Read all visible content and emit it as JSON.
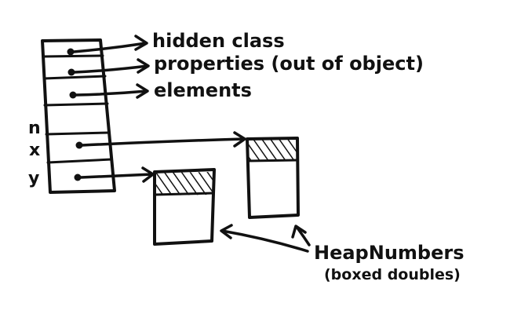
{
  "labels": {
    "hidden_class": "hidden class",
    "properties": "properties (out of object)",
    "elements": "elements",
    "field_n": "n",
    "field_x": "x",
    "field_y": "y",
    "heap_numbers": "HeapNumbers",
    "boxed_doubles": "(boxed doubles)"
  },
  "colors": {
    "ink": "#111111",
    "background": "#ffffff"
  }
}
